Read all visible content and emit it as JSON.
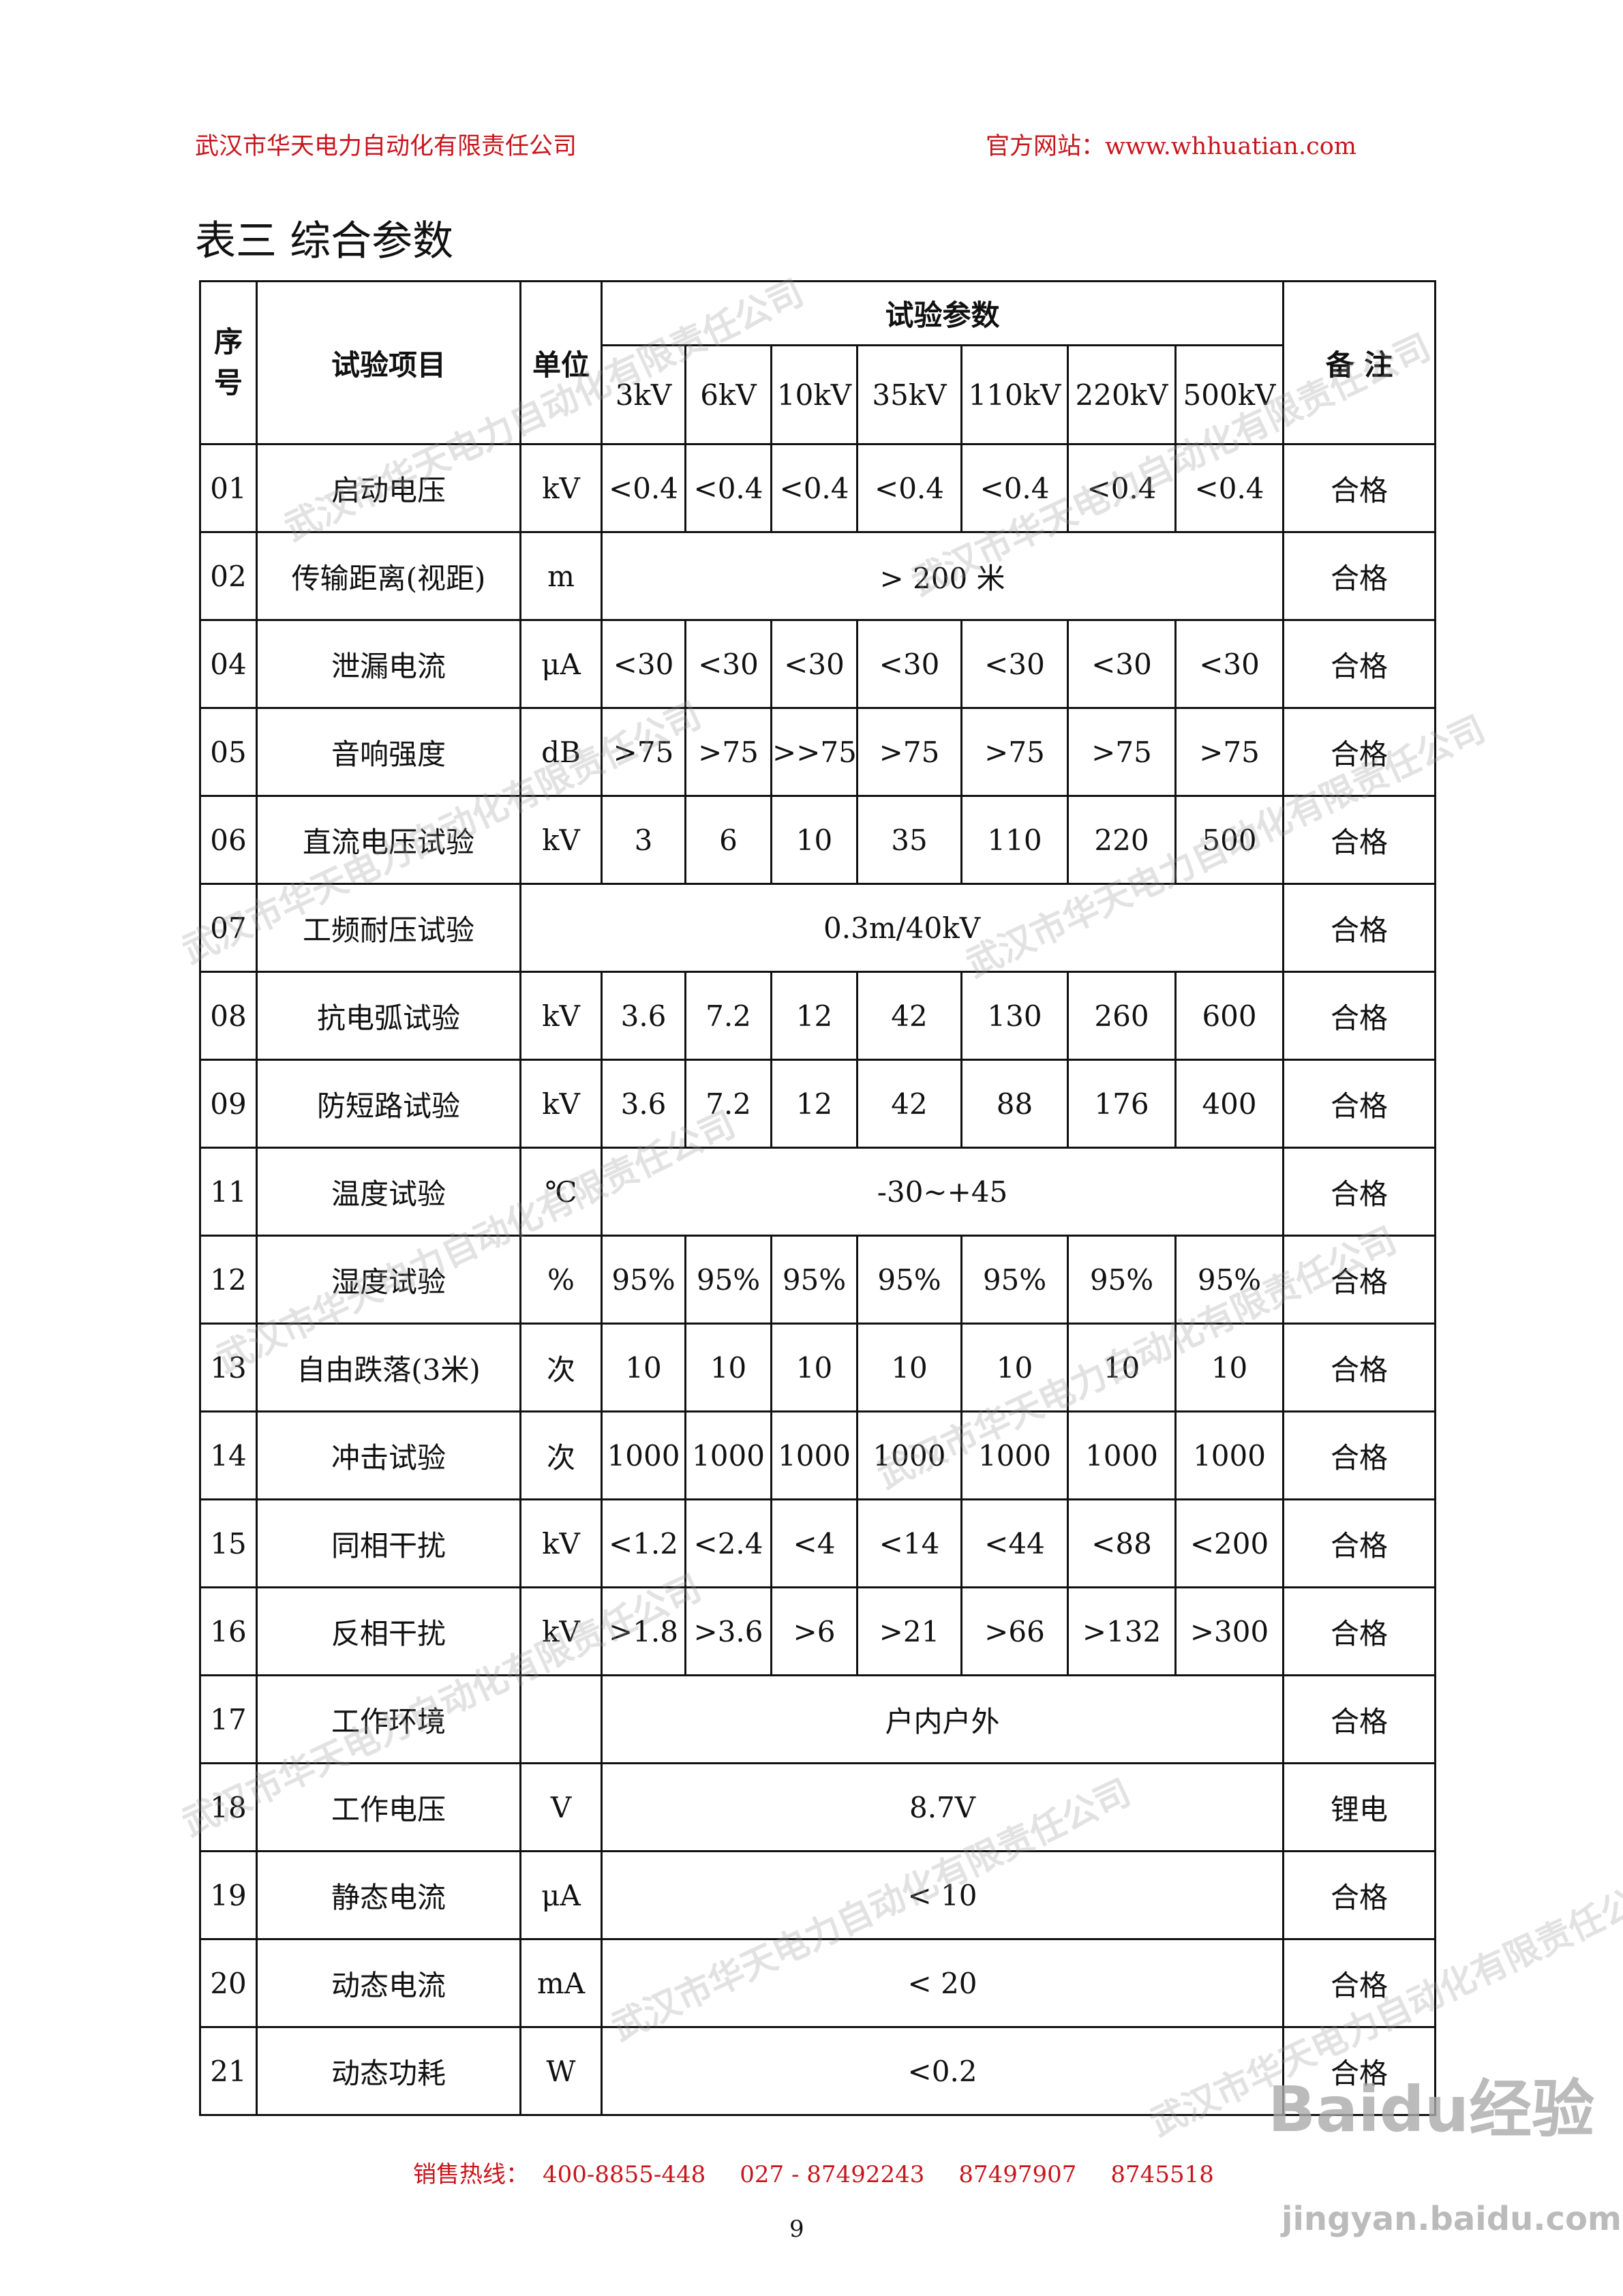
{
  "header": {
    "company": "武汉市华天电力自动化有限责任公司",
    "website": "官方网站：www.whhuatian.com"
  },
  "title": "表三  综合参数",
  "table": {
    "headers": {
      "no": "序号",
      "item": "试验项目",
      "unit": "单位",
      "params": "试验参数",
      "note": "备 注",
      "voltages": [
        "3kV",
        "6kV",
        "10kV",
        "35kV",
        "110kV",
        "220kV",
        "500kV"
      ]
    },
    "rows": [
      {
        "no": "01",
        "item": "启动电压",
        "unit": "kV",
        "values": [
          "<0.4",
          "<0.4",
          "<0.4",
          "<0.4",
          "<0.4",
          "<0.4",
          "<0.4"
        ],
        "note": "合格"
      },
      {
        "no": "02",
        "item": "传输距离(视距)",
        "unit": "m",
        "span": "> 200 米",
        "note": "合格"
      },
      {
        "no": "04",
        "item": "泄漏电流",
        "unit": "μA",
        "values": [
          "<30",
          "<30",
          "<30",
          "<30",
          "<30",
          "<30",
          "<30"
        ],
        "note": "合格"
      },
      {
        "no": "05",
        "item": "音响强度",
        "unit": "dB",
        "values": [
          ">75",
          ">75",
          ">>75",
          ">75",
          ">75",
          ">75",
          ">75"
        ],
        "note": "合格"
      },
      {
        "no": "06",
        "item": "直流电压试验",
        "unit": "kV",
        "values": [
          "3",
          "6",
          "10",
          "35",
          "110",
          "220",
          "500"
        ],
        "note": "合格"
      },
      {
        "no": "07",
        "item": "工频耐压试验",
        "spanAll": "0.3m/40kV",
        "note": "合格"
      },
      {
        "no": "08",
        "item": "抗电弧试验",
        "unit": "kV",
        "values": [
          "3.6",
          "7.2",
          "12",
          "42",
          "130",
          "260",
          "600"
        ],
        "note": "合格"
      },
      {
        "no": "09",
        "item": "防短路试验",
        "unit": "kV",
        "values": [
          "3.6",
          "7.2",
          "12",
          "42",
          "88",
          "176",
          "400"
        ],
        "note": "合格"
      },
      {
        "no": "11",
        "item": "温度试验",
        "unit": "℃",
        "span": "-30~+45",
        "note": "合格"
      },
      {
        "no": "12",
        "item": "湿度试验",
        "unit": "%",
        "values": [
          "95%",
          "95%",
          "95%",
          "95%",
          "95%",
          "95%",
          "95%"
        ],
        "note": "合格"
      },
      {
        "no": "13",
        "item": "自由跌落(3米)",
        "unit": "次",
        "values": [
          "10",
          "10",
          "10",
          "10",
          "10",
          "10",
          "10"
        ],
        "note": "合格"
      },
      {
        "no": "14",
        "item": "冲击试验",
        "unit": "次",
        "values": [
          "1000",
          "1000",
          "1000",
          "1000",
          "1000",
          "1000",
          "1000"
        ],
        "note": "合格"
      },
      {
        "no": "15",
        "item": "同相干扰",
        "unit": "kV",
        "values": [
          "<1.2",
          "<2.4",
          "<4",
          "<14",
          "<44",
          "<88",
          "<200"
        ],
        "note": "合格"
      },
      {
        "no": "16",
        "item": "反相干扰",
        "unit": "kV",
        "values": [
          ">1.8",
          ">3.6",
          ">6",
          ">21",
          ">66",
          ">132",
          ">300"
        ],
        "note": "合格"
      },
      {
        "no": "17",
        "item": "工作环境",
        "unit": "",
        "span": "户内户外",
        "note": "合格"
      },
      {
        "no": "18",
        "item": "工作电压",
        "unit": "V",
        "span": "8.7V",
        "note": "锂电"
      },
      {
        "no": "19",
        "item": "静态电流",
        "unit": "μA",
        "span": "< 10",
        "note": "合格"
      },
      {
        "no": "20",
        "item": "动态电流",
        "unit": "mA",
        "span": "< 20",
        "note": "合格"
      },
      {
        "no": "21",
        "item": "动态功耗",
        "unit": "W",
        "span": "<0.2",
        "note": "合格"
      }
    ]
  },
  "footer": {
    "label": "销售热线：",
    "phones": [
      "400-8855-448",
      "027 - 87492243",
      "87497907",
      "8745518"
    ]
  },
  "page_number": "9",
  "watermark": {
    "text": "武汉市华天电力自动化有限责任公司",
    "baidu": "Baidu经验",
    "baidu_url": "jingyan.baidu.com"
  },
  "colors": {
    "header_red": "#c8161d"
  }
}
